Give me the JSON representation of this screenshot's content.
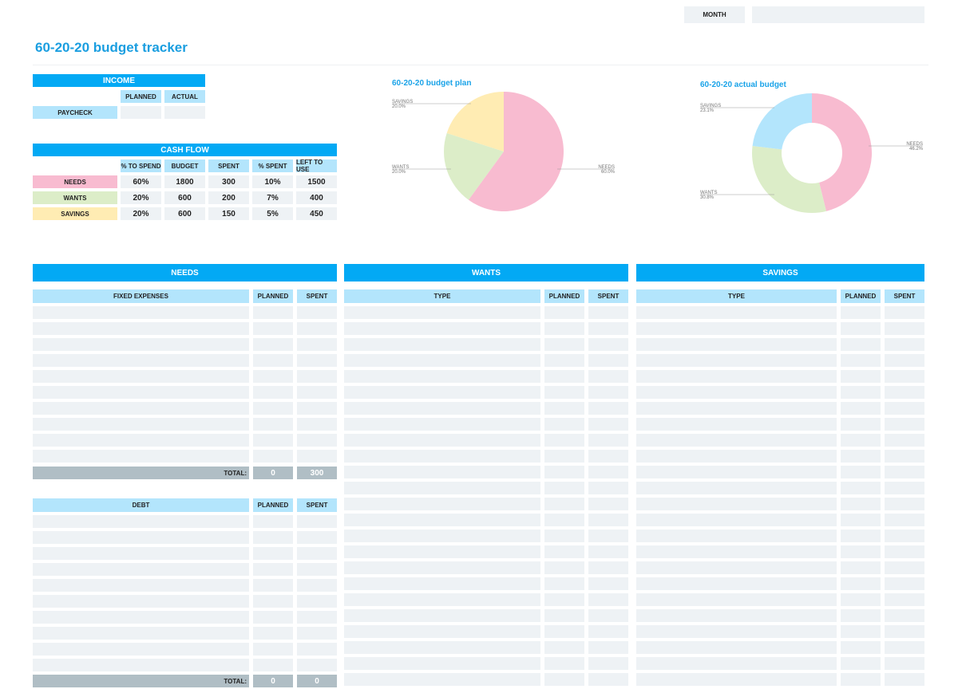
{
  "header": {
    "month_label": "MONTH",
    "month_value": ""
  },
  "title": "60-20-20 budget tracker",
  "income": {
    "title": "INCOME",
    "cols": [
      "PLANNED",
      "ACTUAL"
    ],
    "rows": [
      {
        "label": "PAYCHECK",
        "planned": "",
        "actual": ""
      }
    ]
  },
  "cash_flow": {
    "title": "CASH FLOW",
    "cols": [
      "% TO SPEND",
      "BUDGET",
      "SPENT",
      "% SPENT",
      "LEFT TO USE"
    ],
    "rows": [
      {
        "label": "NEEDS",
        "color": "#f8bbd0",
        "values": [
          "60%",
          "1800",
          "300",
          "10%",
          "1500"
        ]
      },
      {
        "label": "WANTS",
        "color": "#dcedc8",
        "values": [
          "20%",
          "600",
          "200",
          "7%",
          "400"
        ]
      },
      {
        "label": "SAVINGS",
        "color": "#ffecb3",
        "values": [
          "20%",
          "600",
          "150",
          "5%",
          "450"
        ]
      }
    ]
  },
  "chart_data": [
    {
      "type": "pie",
      "title": "60-20-20 budget plan",
      "categories": [
        "NEEDS",
        "WANTS",
        "SAVINGS"
      ],
      "values": [
        60,
        20,
        20
      ],
      "labels": [
        "60.0%",
        "20.0%",
        "20.0%"
      ],
      "colors": [
        "#f8bbd0",
        "#dcedc8",
        "#ffecb3"
      ]
    },
    {
      "type": "pie",
      "donut": true,
      "title": "60-20-20 actual budget",
      "categories": [
        "NEEDS",
        "WANTS",
        "SAVINGS"
      ],
      "values": [
        300,
        200,
        150
      ],
      "labels": [
        "46.2%",
        "30.8%",
        "23.1%"
      ],
      "colors": [
        "#f8bbd0",
        "#dcedc8",
        "#b3e5fc"
      ]
    }
  ],
  "needs": {
    "title": "NEEDS",
    "fixed_header": [
      "FIXED EXPENSES",
      "PLANNED",
      "SPENT"
    ],
    "fixed_total": {
      "label": "TOTAL:",
      "planned": "0",
      "spent": "300"
    },
    "debt_header": [
      "DEBT",
      "PLANNED",
      "SPENT"
    ],
    "debt_total": {
      "label": "TOTAL:",
      "planned": "0",
      "spent": "0"
    }
  },
  "wants": {
    "title": "WANTS",
    "header": [
      "TYPE",
      "PLANNED",
      "SPENT"
    ]
  },
  "savings": {
    "title": "SAVINGS",
    "header": [
      "TYPE",
      "PLANNED",
      "SPENT"
    ]
  }
}
